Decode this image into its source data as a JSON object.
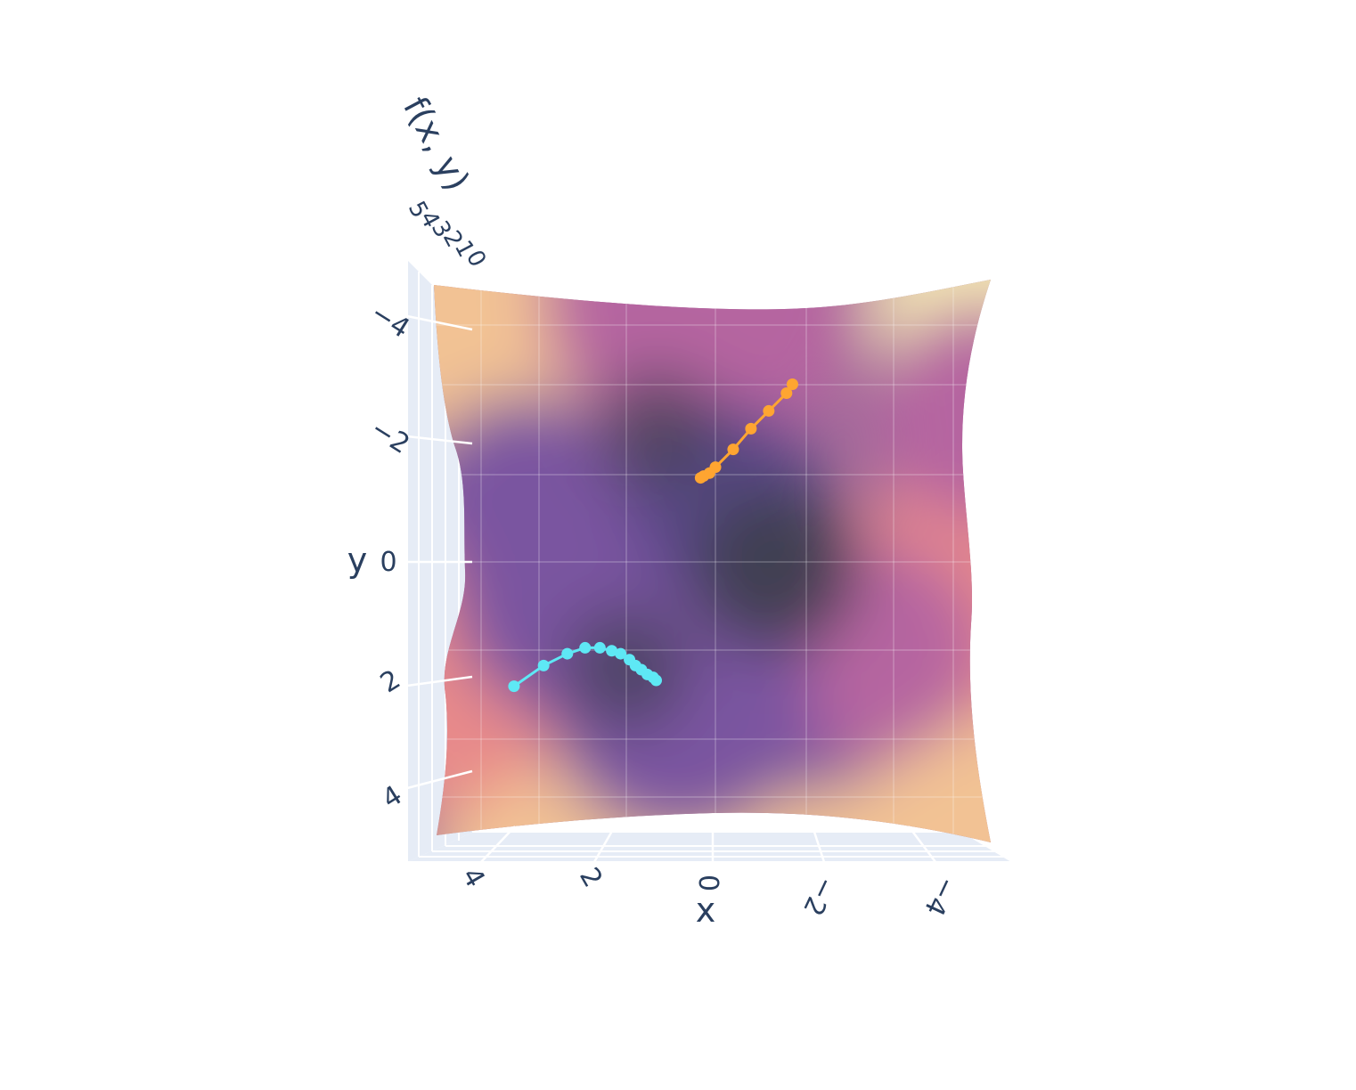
{
  "chart_data": {
    "type": "surface",
    "title": "",
    "xlabel": "x",
    "ylabel": "y",
    "zlabel": "f(x, y)",
    "x_ticks": [
      "4",
      "2",
      "0",
      "−2",
      "−4"
    ],
    "y_ticks": [
      "−4",
      "−2",
      "0",
      "2",
      "4"
    ],
    "z_ticks": [
      "5",
      "4",
      "3",
      "2",
      "1",
      "0"
    ],
    "xlim": [
      -5,
      5
    ],
    "ylim": [
      -5,
      5
    ],
    "zlim": [
      0,
      5
    ],
    "colorscale": [
      "#3f3f4f",
      "#5b4a8a",
      "#7a55a0",
      "#b565a0",
      "#e88a8a",
      "#f2c294",
      "#f3e6b4"
    ],
    "surface_minima": [
      {
        "x": -1.0,
        "y": 0.1
      },
      {
        "x": 1.0,
        "y": -2.2
      },
      {
        "x": 1.5,
        "y": 1.8
      }
    ],
    "series": [
      {
        "color": "#ffa531",
        "points": [
          {
            "x": -1.3,
            "y": -3.0
          },
          {
            "x": -1.2,
            "y": -2.85
          },
          {
            "x": -0.9,
            "y": -2.55
          },
          {
            "x": -0.6,
            "y": -2.25
          },
          {
            "x": -0.3,
            "y": -1.9
          },
          {
            "x": 0.0,
            "y": -1.6
          },
          {
            "x": 0.1,
            "y": -1.5
          },
          {
            "x": 0.2,
            "y": -1.45
          },
          {
            "x": 0.25,
            "y": -1.42
          }
        ]
      },
      {
        "color": "#5ee8f5",
        "points": [
          {
            "x": 3.4,
            "y": 2.1
          },
          {
            "x": 2.9,
            "y": 1.75
          },
          {
            "x": 2.5,
            "y": 1.55
          },
          {
            "x": 2.2,
            "y": 1.45
          },
          {
            "x": 1.95,
            "y": 1.45
          },
          {
            "x": 1.75,
            "y": 1.5
          },
          {
            "x": 1.6,
            "y": 1.55
          },
          {
            "x": 1.45,
            "y": 1.65
          },
          {
            "x": 1.35,
            "y": 1.75
          },
          {
            "x": 1.25,
            "y": 1.82
          },
          {
            "x": 1.15,
            "y": 1.9
          },
          {
            "x": 1.05,
            "y": 1.95
          },
          {
            "x": 1.0,
            "y": 2.0
          }
        ]
      }
    ]
  }
}
